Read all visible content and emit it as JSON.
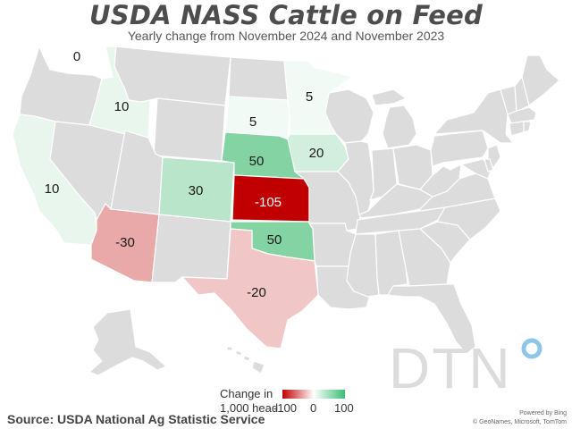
{
  "title": "USDA NASS Cattle on Feed",
  "subtitle": "Yearly change from November 2024 and November 2023",
  "states": {
    "WA": {
      "value": "0",
      "color": "#ffffff"
    },
    "ID": {
      "value": "10",
      "color": "#e8f6ee"
    },
    "CA": {
      "value": "10",
      "color": "#e8f6ee"
    },
    "AZ": {
      "value": "-30",
      "color": "#e9a9a9"
    },
    "CO": {
      "value": "30",
      "color": "#b9e6ca"
    },
    "NE": {
      "value": "50",
      "color": "#84d3a3"
    },
    "KS": {
      "value": "-105",
      "color": "#c00000"
    },
    "OK": {
      "value": "50",
      "color": "#84d3a3"
    },
    "TX": {
      "value": "-20",
      "color": "#f0c6c6"
    },
    "SD": {
      "value": "5",
      "color": "#f2faf5"
    },
    "MN": {
      "value": "5",
      "color": "#f2faf5"
    },
    "IA": {
      "value": "20",
      "color": "#d1efdc"
    }
  },
  "legend": {
    "title": "Change in",
    "unit": "1,000 head",
    "min": "-100",
    "mid": "0",
    "max": "100",
    "colors": [
      "#c00000",
      "#ffffff",
      "#3bbd73"
    ]
  },
  "source": "Source: USDA National Ag Statistic Service",
  "attribution": {
    "powered": "Powered by Bing",
    "credit": "© GeoNames, Microsoft, TomTom"
  },
  "logo": {
    "text": "DTN",
    "accent": "#8ec6e8"
  }
}
